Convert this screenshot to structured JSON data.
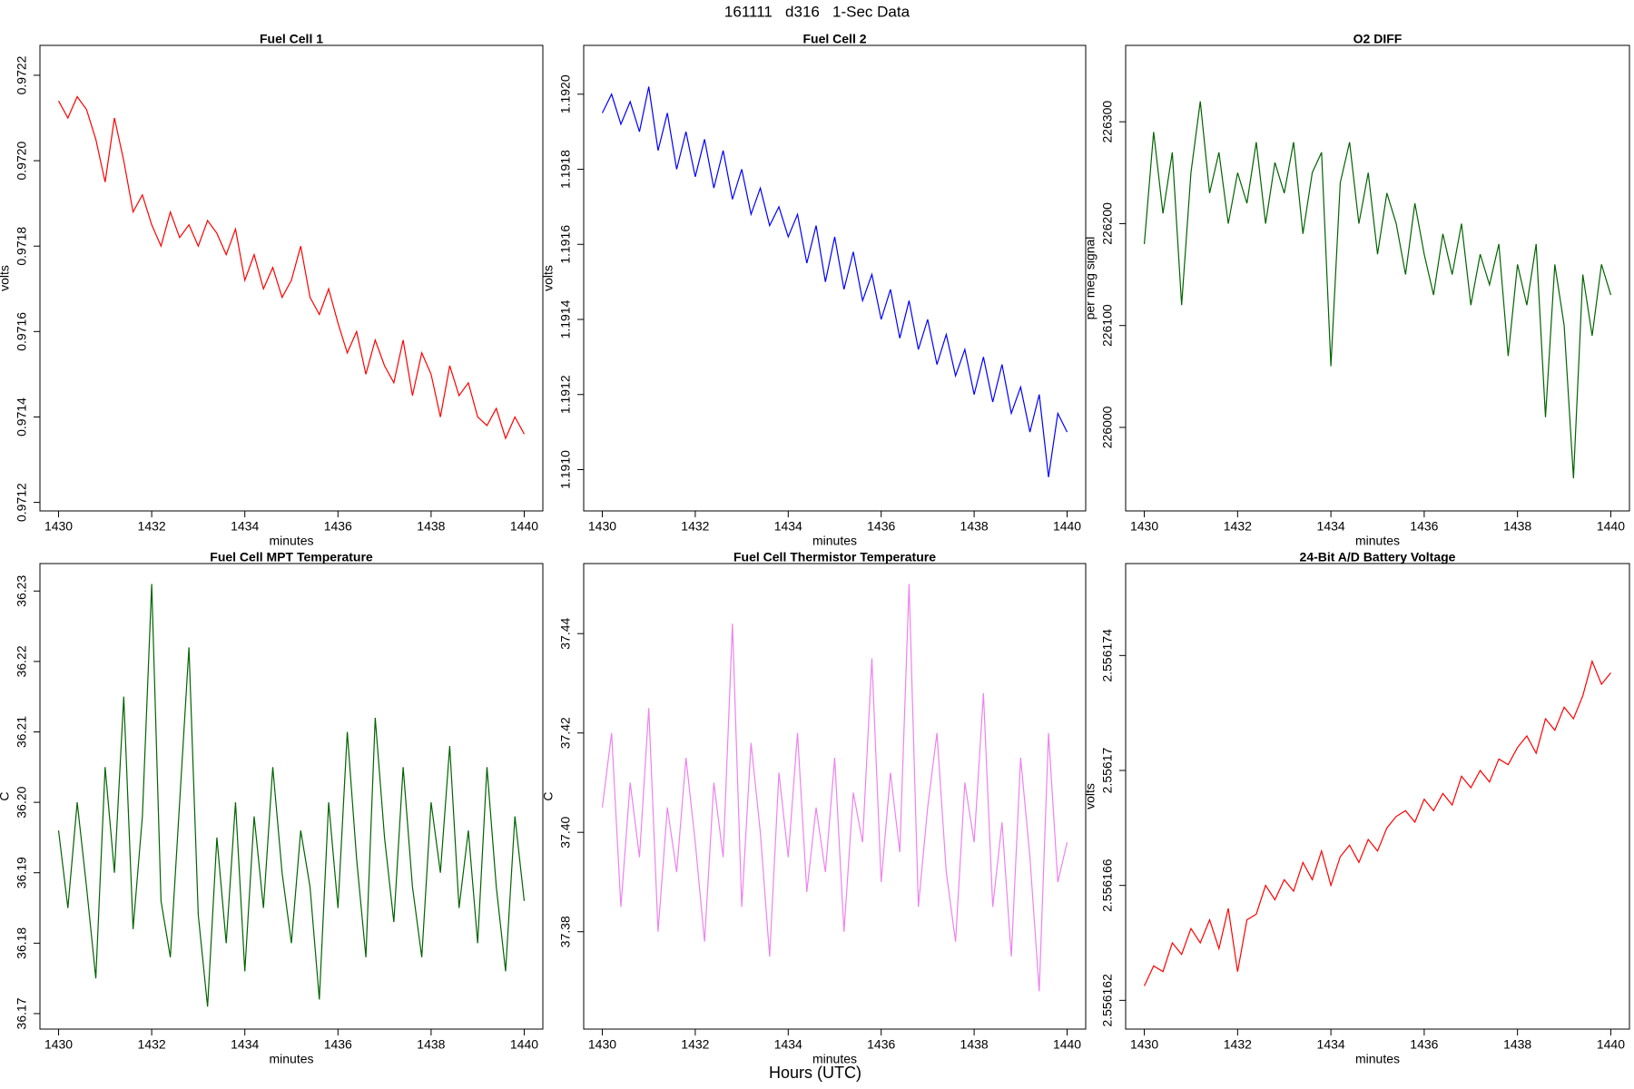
{
  "figure": {
    "title": "161111   d316   1-Sec Data",
    "xlabel": "Hours (UTC)"
  },
  "chart_data": [
    {
      "type": "line",
      "title": "Fuel Cell 1",
      "xlabel": "minutes",
      "ylabel": "volts",
      "color": "#ff0000",
      "xlim": [
        1429.6,
        1440.4
      ],
      "xticks": [
        1430,
        1432,
        1434,
        1436,
        1438,
        1440
      ],
      "ylim": [
        0.97118,
        0.97227
      ],
      "yticks": [
        0.9712,
        0.9714,
        0.9716,
        0.9718,
        {
          "value": 0.972,
          "label": "0.9720"
        },
        0.9722
      ],
      "x": [
        1430,
        1430.2,
        1430.4,
        1430.6,
        1430.8,
        1431,
        1431.2,
        1431.4,
        1431.6,
        1431.8,
        1432,
        1432.2,
        1432.4,
        1432.6,
        1432.8,
        1433,
        1433.2,
        1433.4,
        1433.6,
        1433.8,
        1434,
        1434.2,
        1434.4,
        1434.6,
        1434.8,
        1435,
        1435.2,
        1435.4,
        1435.6,
        1435.8,
        1436,
        1436.2,
        1436.4,
        1436.6,
        1436.8,
        1437,
        1437.2,
        1437.4,
        1437.6,
        1437.8,
        1438,
        1438.2,
        1438.4,
        1438.6,
        1438.8,
        1439,
        1439.2,
        1439.4,
        1439.6,
        1439.8,
        1440
      ],
      "values": [
        0.97214,
        0.9721,
        0.97215,
        0.97212,
        0.97205,
        0.97195,
        0.9721,
        0.972,
        0.97188,
        0.97192,
        0.97185,
        0.9718,
        0.97188,
        0.97182,
        0.97185,
        0.9718,
        0.97186,
        0.97183,
        0.97178,
        0.97184,
        0.97172,
        0.97178,
        0.9717,
        0.97175,
        0.97168,
        0.97172,
        0.9718,
        0.97168,
        0.97164,
        0.9717,
        0.97162,
        0.97155,
        0.9716,
        0.9715,
        0.97158,
        0.97152,
        0.97148,
        0.97158,
        0.97145,
        0.97155,
        0.9715,
        0.9714,
        0.97152,
        0.97145,
        0.97148,
        0.9714,
        0.97138,
        0.97142,
        0.97135,
        0.9714,
        0.97136
      ]
    },
    {
      "type": "line",
      "title": "Fuel Cell 2",
      "xlabel": "minutes",
      "ylabel": "volts",
      "color": "#0000ff",
      "xlim": [
        1429.6,
        1440.4
      ],
      "xticks": [
        1430,
        1432,
        1434,
        1436,
        1438,
        1440
      ],
      "ylim": [
        1.19089,
        1.19213
      ],
      "yticks": [
        {
          "value": 1.191,
          "label": "1.1910"
        },
        1.1912,
        1.1914,
        1.1916,
        1.1918,
        {
          "value": 1.192,
          "label": "1.1920"
        }
      ],
      "x": [
        1430,
        1430.2,
        1430.4,
        1430.6,
        1430.8,
        1431,
        1431.2,
        1431.4,
        1431.6,
        1431.8,
        1432,
        1432.2,
        1432.4,
        1432.6,
        1432.8,
        1433,
        1433.2,
        1433.4,
        1433.6,
        1433.8,
        1434,
        1434.2,
        1434.4,
        1434.6,
        1434.8,
        1435,
        1435.2,
        1435.4,
        1435.6,
        1435.8,
        1436,
        1436.2,
        1436.4,
        1436.6,
        1436.8,
        1437,
        1437.2,
        1437.4,
        1437.6,
        1437.8,
        1438,
        1438.2,
        1438.4,
        1438.6,
        1438.8,
        1439,
        1439.2,
        1439.4,
        1439.6,
        1439.8,
        1440
      ],
      "values": [
        1.19195,
        1.192,
        1.19192,
        1.19198,
        1.1919,
        1.19202,
        1.19185,
        1.19195,
        1.1918,
        1.1919,
        1.19178,
        1.19188,
        1.19175,
        1.19185,
        1.19172,
        1.1918,
        1.19168,
        1.19175,
        1.19165,
        1.1917,
        1.19162,
        1.19168,
        1.19155,
        1.19165,
        1.1915,
        1.19162,
        1.19148,
        1.19158,
        1.19145,
        1.19152,
        1.1914,
        1.19148,
        1.19135,
        1.19145,
        1.19132,
        1.1914,
        1.19128,
        1.19136,
        1.19125,
        1.19132,
        1.1912,
        1.1913,
        1.19118,
        1.19128,
        1.19115,
        1.19122,
        1.1911,
        1.1912,
        1.19098,
        1.19115,
        1.1911
      ]
    },
    {
      "type": "line",
      "title": "O2 DIFF",
      "xlabel": "minutes",
      "ylabel": "per meg signal",
      "color": "#006400",
      "xlim": [
        1429.6,
        1440.4
      ],
      "xticks": [
        1430,
        1432,
        1434,
        1436,
        1438,
        1440
      ],
      "ylim": [
        225918,
        226375
      ],
      "yticks": [
        226000,
        226100,
        226200,
        226300
      ],
      "x": [
        1430,
        1430.2,
        1430.4,
        1430.6,
        1430.8,
        1431,
        1431.2,
        1431.4,
        1431.6,
        1431.8,
        1432,
        1432.2,
        1432.4,
        1432.6,
        1432.8,
        1433,
        1433.2,
        1433.4,
        1433.6,
        1433.8,
        1434,
        1434.2,
        1434.4,
        1434.6,
        1434.8,
        1435,
        1435.2,
        1435.4,
        1435.6,
        1435.8,
        1436,
        1436.2,
        1436.4,
        1436.6,
        1436.8,
        1437,
        1437.2,
        1437.4,
        1437.6,
        1437.8,
        1438,
        1438.2,
        1438.4,
        1438.6,
        1438.8,
        1439,
        1439.2,
        1439.4,
        1439.6,
        1439.8,
        1440
      ],
      "values": [
        226180,
        226290,
        226210,
        226270,
        226120,
        226250,
        226320,
        226230,
        226270,
        226200,
        226250,
        226220,
        226280,
        226200,
        226260,
        226230,
        226280,
        226190,
        226250,
        226270,
        226060,
        226240,
        226280,
        226200,
        226250,
        226170,
        226230,
        226200,
        226150,
        226220,
        226170,
        226130,
        226190,
        226150,
        226200,
        226120,
        226170,
        226140,
        226180,
        226070,
        226160,
        226120,
        226180,
        226010,
        226160,
        226100,
        225950,
        226150,
        226090,
        226160,
        226130
      ]
    },
    {
      "type": "line",
      "title": "Fuel Cell MPT Temperature",
      "xlabel": "minutes",
      "ylabel": "C",
      "color": "#006400",
      "xlim": [
        1429.6,
        1440.4
      ],
      "xticks": [
        1430,
        1432,
        1434,
        1436,
        1438,
        1440
      ],
      "ylim": [
        36.1678,
        36.2339
      ],
      "yticks": [
        36.17,
        36.18,
        36.19,
        {
          "value": 36.2,
          "label": "36.20"
        },
        36.21,
        36.22,
        36.23
      ],
      "x": [
        1430,
        1430.2,
        1430.4,
        1430.6,
        1430.8,
        1431,
        1431.2,
        1431.4,
        1431.6,
        1431.8,
        1432,
        1432.2,
        1432.4,
        1432.6,
        1432.8,
        1433,
        1433.2,
        1433.4,
        1433.6,
        1433.8,
        1434,
        1434.2,
        1434.4,
        1434.6,
        1434.8,
        1435,
        1435.2,
        1435.4,
        1435.6,
        1435.8,
        1436,
        1436.2,
        1436.4,
        1436.6,
        1436.8,
        1437,
        1437.2,
        1437.4,
        1437.6,
        1437.8,
        1438,
        1438.2,
        1438.4,
        1438.6,
        1438.8,
        1439,
        1439.2,
        1439.4,
        1439.6,
        1439.8,
        1440
      ],
      "values": [
        36.196,
        36.185,
        36.2,
        36.188,
        36.175,
        36.205,
        36.19,
        36.215,
        36.182,
        36.198,
        36.231,
        36.186,
        36.178,
        36.2,
        36.222,
        36.184,
        36.171,
        36.195,
        36.18,
        36.2,
        36.176,
        36.198,
        36.185,
        36.205,
        36.19,
        36.18,
        36.196,
        36.188,
        36.172,
        36.2,
        36.185,
        36.21,
        36.192,
        36.178,
        36.212,
        36.195,
        36.183,
        36.205,
        36.188,
        36.178,
        36.2,
        36.19,
        36.208,
        36.185,
        36.196,
        36.18,
        36.205,
        36.188,
        36.176,
        36.198,
        36.186
      ]
    },
    {
      "type": "line",
      "title": "Fuel Cell Thermistor Temperature",
      "xlabel": "minutes",
      "ylabel": "C",
      "color": "#ee82ee",
      "xlim": [
        1429.6,
        1440.4
      ],
      "xticks": [
        1430,
        1432,
        1434,
        1436,
        1438,
        1440
      ],
      "ylim": [
        37.3604,
        37.4541
      ],
      "yticks": [
        37.38,
        {
          "value": 37.4,
          "label": "37.40"
        },
        37.42,
        37.44
      ],
      "x": [
        1430,
        1430.2,
        1430.4,
        1430.6,
        1430.8,
        1431,
        1431.2,
        1431.4,
        1431.6,
        1431.8,
        1432,
        1432.2,
        1432.4,
        1432.6,
        1432.8,
        1433,
        1433.2,
        1433.4,
        1433.6,
        1433.8,
        1434,
        1434.2,
        1434.4,
        1434.6,
        1434.8,
        1435,
        1435.2,
        1435.4,
        1435.6,
        1435.8,
        1436,
        1436.2,
        1436.4,
        1436.6,
        1436.8,
        1437,
        1437.2,
        1437.4,
        1437.6,
        1437.8,
        1438,
        1438.2,
        1438.4,
        1438.6,
        1438.8,
        1439,
        1439.2,
        1439.4,
        1439.6,
        1439.8,
        1440
      ],
      "values": [
        37.405,
        37.42,
        37.385,
        37.41,
        37.395,
        37.425,
        37.38,
        37.405,
        37.392,
        37.415,
        37.398,
        37.378,
        37.41,
        37.395,
        37.442,
        37.385,
        37.418,
        37.4,
        37.375,
        37.412,
        37.395,
        37.42,
        37.388,
        37.405,
        37.392,
        37.415,
        37.38,
        37.408,
        37.398,
        37.435,
        37.39,
        37.412,
        37.396,
        37.45,
        37.385,
        37.405,
        37.42,
        37.392,
        37.378,
        37.41,
        37.398,
        37.428,
        37.385,
        37.402,
        37.375,
        37.415,
        37.395,
        37.368,
        37.42,
        37.39,
        37.398
      ]
    },
    {
      "type": "line",
      "title": "24-Bit A/D Battery Voltage",
      "xlabel": "minutes",
      "ylabel": "volts",
      "color": "#ff0000",
      "xlim": [
        1429.6,
        1440.4
      ],
      "xticks": [
        1430,
        1432,
        1434,
        1436,
        1438,
        1440
      ],
      "ylim": [
        2.556161,
        2.5561772
      ],
      "yticks": [
        2.556162,
        2.556166,
        2.55617,
        2.556174
      ],
      "x": [
        1430,
        1430.2,
        1430.4,
        1430.6,
        1430.8,
        1431,
        1431.2,
        1431.4,
        1431.6,
        1431.8,
        1432,
        1432.2,
        1432.4,
        1432.6,
        1432.8,
        1433,
        1433.2,
        1433.4,
        1433.6,
        1433.8,
        1434,
        1434.2,
        1434.4,
        1434.6,
        1434.8,
        1435,
        1435.2,
        1435.4,
        1435.6,
        1435.8,
        1436,
        1436.2,
        1436.4,
        1436.6,
        1436.8,
        1437,
        1437.2,
        1437.4,
        1437.6,
        1437.8,
        1438,
        1438.2,
        1438.4,
        1438.6,
        1438.8,
        1439,
        1439.2,
        1439.4,
        1439.6,
        1439.8,
        1440
      ],
      "values": [
        2.5561625,
        2.5561632,
        2.556163,
        2.556164,
        2.5561636,
        2.5561645,
        2.556164,
        2.5561648,
        2.5561638,
        2.5561652,
        2.556163,
        2.5561648,
        2.556165,
        2.556166,
        2.5561655,
        2.5561662,
        2.5561658,
        2.5561668,
        2.5561662,
        2.5561672,
        2.556166,
        2.556167,
        2.5561674,
        2.5561668,
        2.5561676,
        2.5561672,
        2.556168,
        2.5561684,
        2.5561686,
        2.5561682,
        2.556169,
        2.5561686,
        2.5561692,
        2.5561688,
        2.5561698,
        2.5561694,
        2.55617,
        2.5561696,
        2.5561704,
        2.5561702,
        2.5561708,
        2.5561712,
        2.5561706,
        2.5561718,
        2.5561714,
        2.5561722,
        2.5561718,
        2.5561726,
        2.5561738,
        2.556173,
        2.5561734
      ]
    }
  ]
}
